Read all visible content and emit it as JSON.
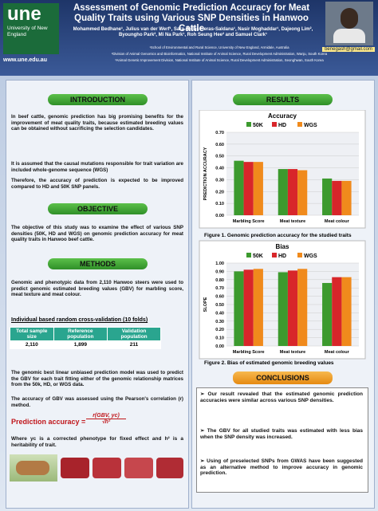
{
  "header": {
    "logo": "une",
    "logo_sub": "University of New England",
    "url": "www.une.edu.au",
    "title": "Assessment of Genomic Prediction Accuracy for Meat Quality Traits using Various SNP Densities in Hanwoo Cattle",
    "authors": "Mohammed Bedhane¹, Julius van der Werf¹, Sara de las Heras-Saldana¹, Nasir Moghaddar¹, Dajeong Lim², Byoungho Park², Mi Na Park¹, Roh Seung Hee² and Samuel Clark¹",
    "affiliations": [
      "¹School of Environmental and Rural Science, University of New England, Armidale, Australia",
      "²Division of Animal Genomics and Bioinformatics, National Institute of Animal Science, Rural Development Administration, Wanju, South Korea",
      "³Animal Genetic Improvement Division, National Institute of Animal Science, Rural Development Administration, Seonghwan, South Korea"
    ],
    "email": "benegash@gmail.com"
  },
  "introduction": {
    "heading": "INTRODUCTION",
    "paragraphs": [
      "In beef cattle, genomic prediction has big promising benefits for the improvement of meat quality traits, because estimated breeding values can be obtained without sacrificing the selection candidates.",
      "It is assumed that the causal mutations responsible for trait variation are included whole-genome sequence (WGS)",
      "Therefore, the accuracy of prediction is expected to be improved compared to HD and 50K SNP panels."
    ]
  },
  "objective": {
    "heading": "OBJECTIVE",
    "text": "The objective of this study was to examine the effect of various SNP densities (50K, HD and WGS) on genomic prediction accuracy for meat quality traits in Hanwoo beef cattle."
  },
  "methods": {
    "heading": "METHODS",
    "text": "Genomic and phenotypic data from 2,110 Hanwoo steers were used to predict genomic estimated breeding values (GBV) for marbling score, meat texture and meat colour.",
    "cv_title": "Individual based random cross-validation (10 folds)",
    "table": {
      "header": [
        "Total sample size",
        "Reference population",
        "Validation population"
      ],
      "rows": [
        [
          "2,110",
          "1,899",
          "211"
        ]
      ]
    },
    "gblup": "The genomic best linear unbiased prediction model was used to predict the GBV for each trait fitting either of the genomic relationship matrices from the 50k, HD, or WGS data.",
    "accuracy_text": "The accuracy of GBV was assessed using the Pearson's correlation (r) method.",
    "formula_label": "Prediction accuracy =",
    "formula_num": "r(GBV, yc)",
    "formula_den": "√h²",
    "where": "Where yc is a corrected phenotype for fixed effect and h² is a heritability of trait."
  },
  "results": {
    "heading": "RESULTS"
  },
  "chart_data": [
    {
      "type": "bar",
      "title": "Accuracy",
      "y_label": "PREDICTION ACCURACY",
      "categories": [
        "Marbling Score",
        "Meat texture",
        "Meat colour"
      ],
      "series": [
        {
          "name": "50K",
          "color": "#3c9a2e",
          "values": [
            0.46,
            0.39,
            0.31
          ]
        },
        {
          "name": "HD",
          "color": "#d8262a",
          "values": [
            0.45,
            0.39,
            0.29
          ]
        },
        {
          "name": "WGS",
          "color": "#f08a1c",
          "values": [
            0.45,
            0.38,
            0.29
          ]
        }
      ],
      "ylim": [
        0,
        0.7
      ],
      "yticks": [
        {
          "value": 0,
          "label": "0.00"
        },
        {
          "value": 0.1,
          "label": "0.10"
        },
        {
          "value": 0.2,
          "label": "0.20"
        },
        {
          "value": 0.3,
          "label": "0.30"
        },
        {
          "value": 0.4,
          "label": "0.40"
        },
        {
          "value": 0.5,
          "label": "0.50"
        },
        {
          "value": 0.6,
          "label": "0.60"
        },
        {
          "value": 0.7,
          "label": "0.70"
        }
      ],
      "grid": true,
      "caption": "Figure 1. Genomic prediction accuracy for the studied traits"
    },
    {
      "type": "bar",
      "title": "Bias",
      "y_label": "SLOPE",
      "categories": [
        "Marbling Score",
        "Meat texture",
        "Meat colour"
      ],
      "series": [
        {
          "name": "50K",
          "color": "#3c9a2e",
          "values": [
            0.9,
            0.89,
            0.76
          ]
        },
        {
          "name": "HD",
          "color": "#d8262a",
          "values": [
            0.92,
            0.91,
            0.83
          ]
        },
        {
          "name": "WGS",
          "color": "#f08a1c",
          "values": [
            0.93,
            0.93,
            0.83
          ]
        }
      ],
      "ylim": [
        0,
        1
      ],
      "yticks": [
        {
          "value": 0,
          "label": "0.00"
        },
        {
          "value": 0.1,
          "label": "0.10"
        },
        {
          "value": 0.2,
          "label": "0.20"
        },
        {
          "value": 0.3,
          "label": "0.30"
        },
        {
          "value": 0.4,
          "label": "0.40"
        },
        {
          "value": 0.5,
          "label": "0.50"
        },
        {
          "value": 0.6,
          "label": "0.60"
        },
        {
          "value": 0.7,
          "label": "0.70"
        },
        {
          "value": 0.8,
          "label": "0.80"
        },
        {
          "value": 0.9,
          "label": "0.90"
        },
        {
          "value": 1,
          "label": "1.00"
        }
      ],
      "grid": true,
      "caption": "Figure 2. Bias of estimated genomic breeding values"
    }
  ],
  "conclusions": {
    "heading": "CONCLUSIONS",
    "items": [
      "Our result revealed that the estimated genomic prediction accuracies were similar across various SNP densities.",
      "The GBV for all studied traits was estimated with less bias when the SNP density was increased.",
      "Using of preselected SNPs from GWAS have been suggested as an alternative method to improve accuracy in genomic prediction."
    ]
  }
}
